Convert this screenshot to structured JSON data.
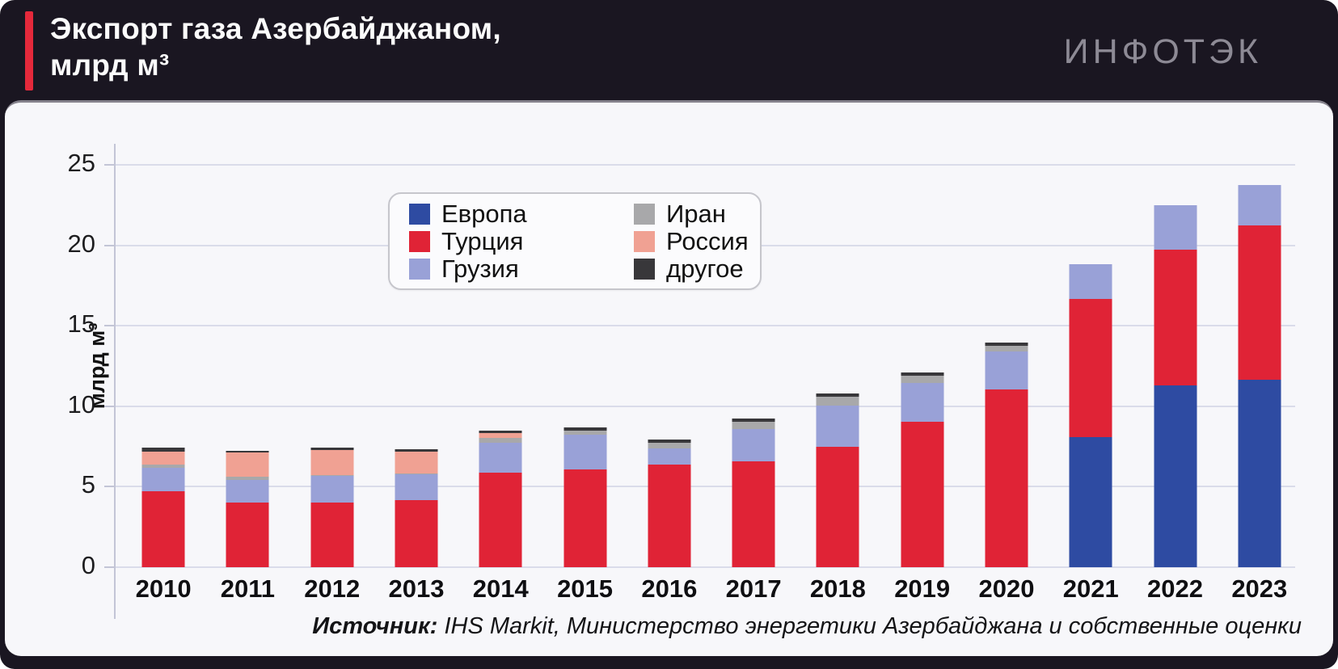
{
  "header": {
    "title_line1": "Экспорт газа Азербайджаном,",
    "title_line2": "млрд м³",
    "logo": "ИНФОТЭК",
    "accent_color": "#e5293b",
    "background_color": "#1a1621"
  },
  "chart_data": {
    "type": "bar",
    "stacked": true,
    "title": "Экспорт газа Азербайджаном, млрд м³",
    "ylabel": "млрд м³",
    "xlabel": "",
    "ylim": [
      0,
      25
    ],
    "yticks": [
      0,
      5,
      10,
      15,
      20,
      25
    ],
    "grid": true,
    "legend_position": "upper-left-inside",
    "categories": [
      "2010",
      "2011",
      "2012",
      "2013",
      "2014",
      "2015",
      "2016",
      "2017",
      "2018",
      "2019",
      "2020",
      "2021",
      "2022",
      "2023"
    ],
    "series": [
      {
        "name": "Европа",
        "color": "#2e4ba2",
        "values": [
          0,
          0,
          0,
          0,
          0,
          0,
          0,
          0,
          0,
          0,
          0,
          8.1,
          11.3,
          11.65
        ]
      },
      {
        "name": "Турция",
        "color": "#e02336",
        "values": [
          4.7,
          4.0,
          4.0,
          4.15,
          5.85,
          6.1,
          6.4,
          6.6,
          7.5,
          9.05,
          11.05,
          8.55,
          8.45,
          9.6
        ]
      },
      {
        "name": "Грузия",
        "color": "#99a1d7",
        "values": [
          1.5,
          1.4,
          1.65,
          1.6,
          1.9,
          2.15,
          1.0,
          2.0,
          2.55,
          2.4,
          2.35,
          2.2,
          2.75,
          2.5
        ]
      },
      {
        "name": "Иран",
        "color": "#a8a8aa",
        "values": [
          0.2,
          0.2,
          0.05,
          0.1,
          0.3,
          0.25,
          0.35,
          0.45,
          0.55,
          0.45,
          0.35,
          0,
          0,
          0
        ]
      },
      {
        "name": "Россия",
        "color": "#f0a193",
        "values": [
          0.8,
          1.55,
          1.6,
          1.35,
          0.3,
          0,
          0,
          0,
          0,
          0,
          0,
          0,
          0,
          0
        ]
      },
      {
        "name": "другое",
        "color": "#38373a",
        "values": [
          0.25,
          0.1,
          0.15,
          0.15,
          0.15,
          0.2,
          0.2,
          0.2,
          0.2,
          0.2,
          0.2,
          0,
          0,
          0
        ]
      }
    ]
  },
  "legend": {
    "columns": [
      [
        "Европа",
        "Турция",
        "Грузия"
      ],
      [
        "Иран",
        "Россия",
        "другое"
      ]
    ]
  },
  "footer": {
    "source_label": "Источник:",
    "source_text": "IHS Markit, Министерство энергетики Азербайджана и собственные оценки"
  }
}
